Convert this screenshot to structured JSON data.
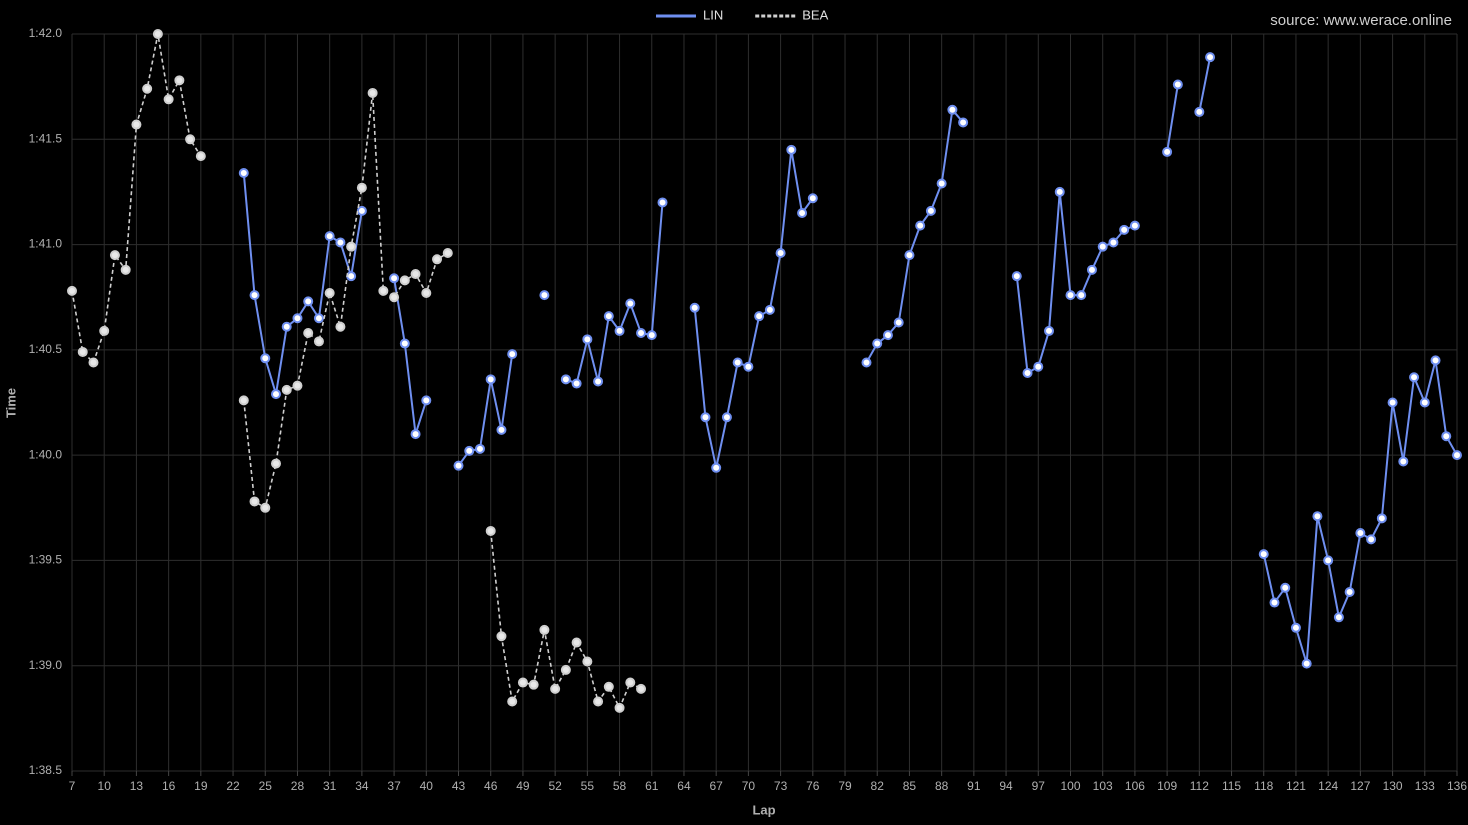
{
  "chart_data": {
    "type": "line",
    "source": "source: www.werace.online",
    "x_label": "Lap",
    "y_label": "Time",
    "x": [
      7,
      8,
      9,
      10,
      11,
      12,
      13,
      14,
      15,
      16,
      17,
      18,
      19,
      20,
      21,
      22,
      23,
      24,
      25,
      26,
      27,
      28,
      29,
      30,
      31,
      32,
      33,
      34,
      35,
      36,
      37,
      38,
      39,
      40,
      41,
      42,
      43,
      44,
      45,
      46,
      47,
      48,
      49,
      50,
      51,
      52,
      53,
      54,
      55,
      56,
      57,
      58,
      59,
      60,
      61,
      62,
      63,
      64,
      65,
      66,
      67,
      68,
      69,
      70,
      71,
      72,
      73,
      74,
      75,
      76,
      77,
      78,
      79,
      80,
      81,
      82,
      83,
      84,
      85,
      86,
      87,
      88,
      89,
      90,
      91,
      92,
      93,
      94,
      95,
      96,
      97,
      98,
      99,
      100,
      101,
      102,
      103,
      104,
      105,
      106,
      107,
      108,
      109,
      110,
      111,
      112,
      113,
      114,
      115,
      116,
      117,
      118,
      119,
      120,
      121,
      122,
      123,
      124,
      125,
      126,
      127,
      128,
      129,
      130,
      131,
      132,
      133,
      134,
      135,
      136
    ],
    "series": [
      {
        "name": "LIN",
        "color": "#6f8ff0",
        "marker_fill": "#ffffff",
        "dashed": false,
        "values": [
          null,
          null,
          null,
          null,
          null,
          null,
          null,
          null,
          null,
          null,
          null,
          null,
          null,
          null,
          null,
          null,
          101.34,
          100.76,
          100.46,
          100.29,
          100.61,
          100.65,
          100.73,
          100.65,
          101.04,
          101.01,
          100.85,
          101.16,
          null,
          null,
          100.84,
          100.53,
          100.1,
          100.26,
          null,
          null,
          99.95,
          100.02,
          100.03,
          100.36,
          100.12,
          100.48,
          null,
          null,
          100.76,
          null,
          100.36,
          100.34,
          100.55,
          100.35,
          100.66,
          100.59,
          100.72,
          100.58,
          100.57,
          101.2,
          null,
          null,
          100.7,
          100.18,
          99.94,
          100.18,
          100.44,
          100.42,
          100.66,
          100.69,
          100.96,
          101.45,
          101.15,
          101.22,
          null,
          null,
          null,
          null,
          100.44,
          100.53,
          100.57,
          100.63,
          100.95,
          101.09,
          101.16,
          101.29,
          101.64,
          101.58,
          null,
          null,
          null,
          null,
          100.85,
          100.39,
          100.42,
          100.59,
          101.25,
          100.76,
          100.76,
          100.88,
          100.99,
          101.01,
          101.07,
          101.09,
          null,
          null,
          101.44,
          101.76,
          null,
          101.63,
          101.89,
          null,
          null,
          null,
          null,
          99.53,
          99.3,
          99.37,
          99.18,
          99.01,
          99.71,
          99.5,
          99.23,
          99.35,
          99.63,
          99.6,
          99.7,
          100.25,
          99.97,
          100.37,
          100.25,
          100.45,
          100.09,
          100.0
        ]
      },
      {
        "name": "BEA",
        "color": "#cfcfcf",
        "marker_fill": "#e8e8e8",
        "dashed": true,
        "values": [
          100.78,
          100.49,
          100.44,
          100.59,
          100.95,
          100.88,
          101.57,
          101.74,
          102.0,
          101.69,
          101.78,
          101.5,
          101.42,
          null,
          null,
          null,
          100.26,
          99.78,
          99.75,
          99.96,
          100.31,
          100.33,
          100.58,
          100.54,
          100.77,
          100.61,
          100.99,
          101.27,
          101.72,
          100.78,
          100.75,
          100.83,
          100.86,
          100.77,
          100.93,
          100.96,
          null,
          null,
          null,
          99.64,
          99.14,
          98.83,
          98.92,
          98.91,
          99.17,
          98.89,
          98.98,
          99.11,
          99.02,
          98.83,
          98.9,
          98.8,
          98.92,
          98.89,
          null,
          null,
          null,
          null,
          null,
          null,
          null,
          null,
          null,
          null,
          null,
          null,
          null,
          null,
          null,
          null,
          null,
          null,
          null,
          null,
          null,
          null,
          null,
          null,
          null,
          null,
          null,
          null,
          null,
          null,
          null,
          null,
          null,
          null,
          null,
          null,
          null,
          null,
          null,
          null,
          null,
          null,
          null,
          null,
          null,
          null,
          null,
          null,
          null,
          null,
          null,
          null,
          null,
          null,
          null,
          null,
          null,
          null,
          null,
          null,
          null,
          null,
          null,
          null,
          null,
          null,
          null,
          null,
          null,
          null,
          null,
          null,
          null,
          null,
          null,
          null
        ]
      }
    ],
    "xlim": [
      7,
      136
    ],
    "xticks": [
      7,
      10,
      13,
      16,
      19,
      22,
      25,
      28,
      31,
      34,
      37,
      40,
      43,
      46,
      49,
      52,
      55,
      58,
      61,
      64,
      67,
      70,
      73,
      76,
      79,
      82,
      85,
      88,
      91,
      94,
      97,
      100,
      103,
      106,
      109,
      112,
      115,
      118,
      121,
      124,
      127,
      130,
      133,
      136
    ],
    "ylim": [
      98.5,
      102.0
    ],
    "yticks": [
      {
        "value": 98.5,
        "label": "1:38.5"
      },
      {
        "value": 99.0,
        "label": "1:39.0"
      },
      {
        "value": 99.5,
        "label": "1:39.5"
      },
      {
        "value": 100.0,
        "label": "1:40.0"
      },
      {
        "value": 100.5,
        "label": "1:40.5"
      },
      {
        "value": 101.0,
        "label": "1:41.0"
      },
      {
        "value": 101.5,
        "label": "1:41.5"
      },
      {
        "value": 102.0,
        "label": "1:42.0"
      }
    ],
    "grid": true,
    "legend": "top"
  }
}
